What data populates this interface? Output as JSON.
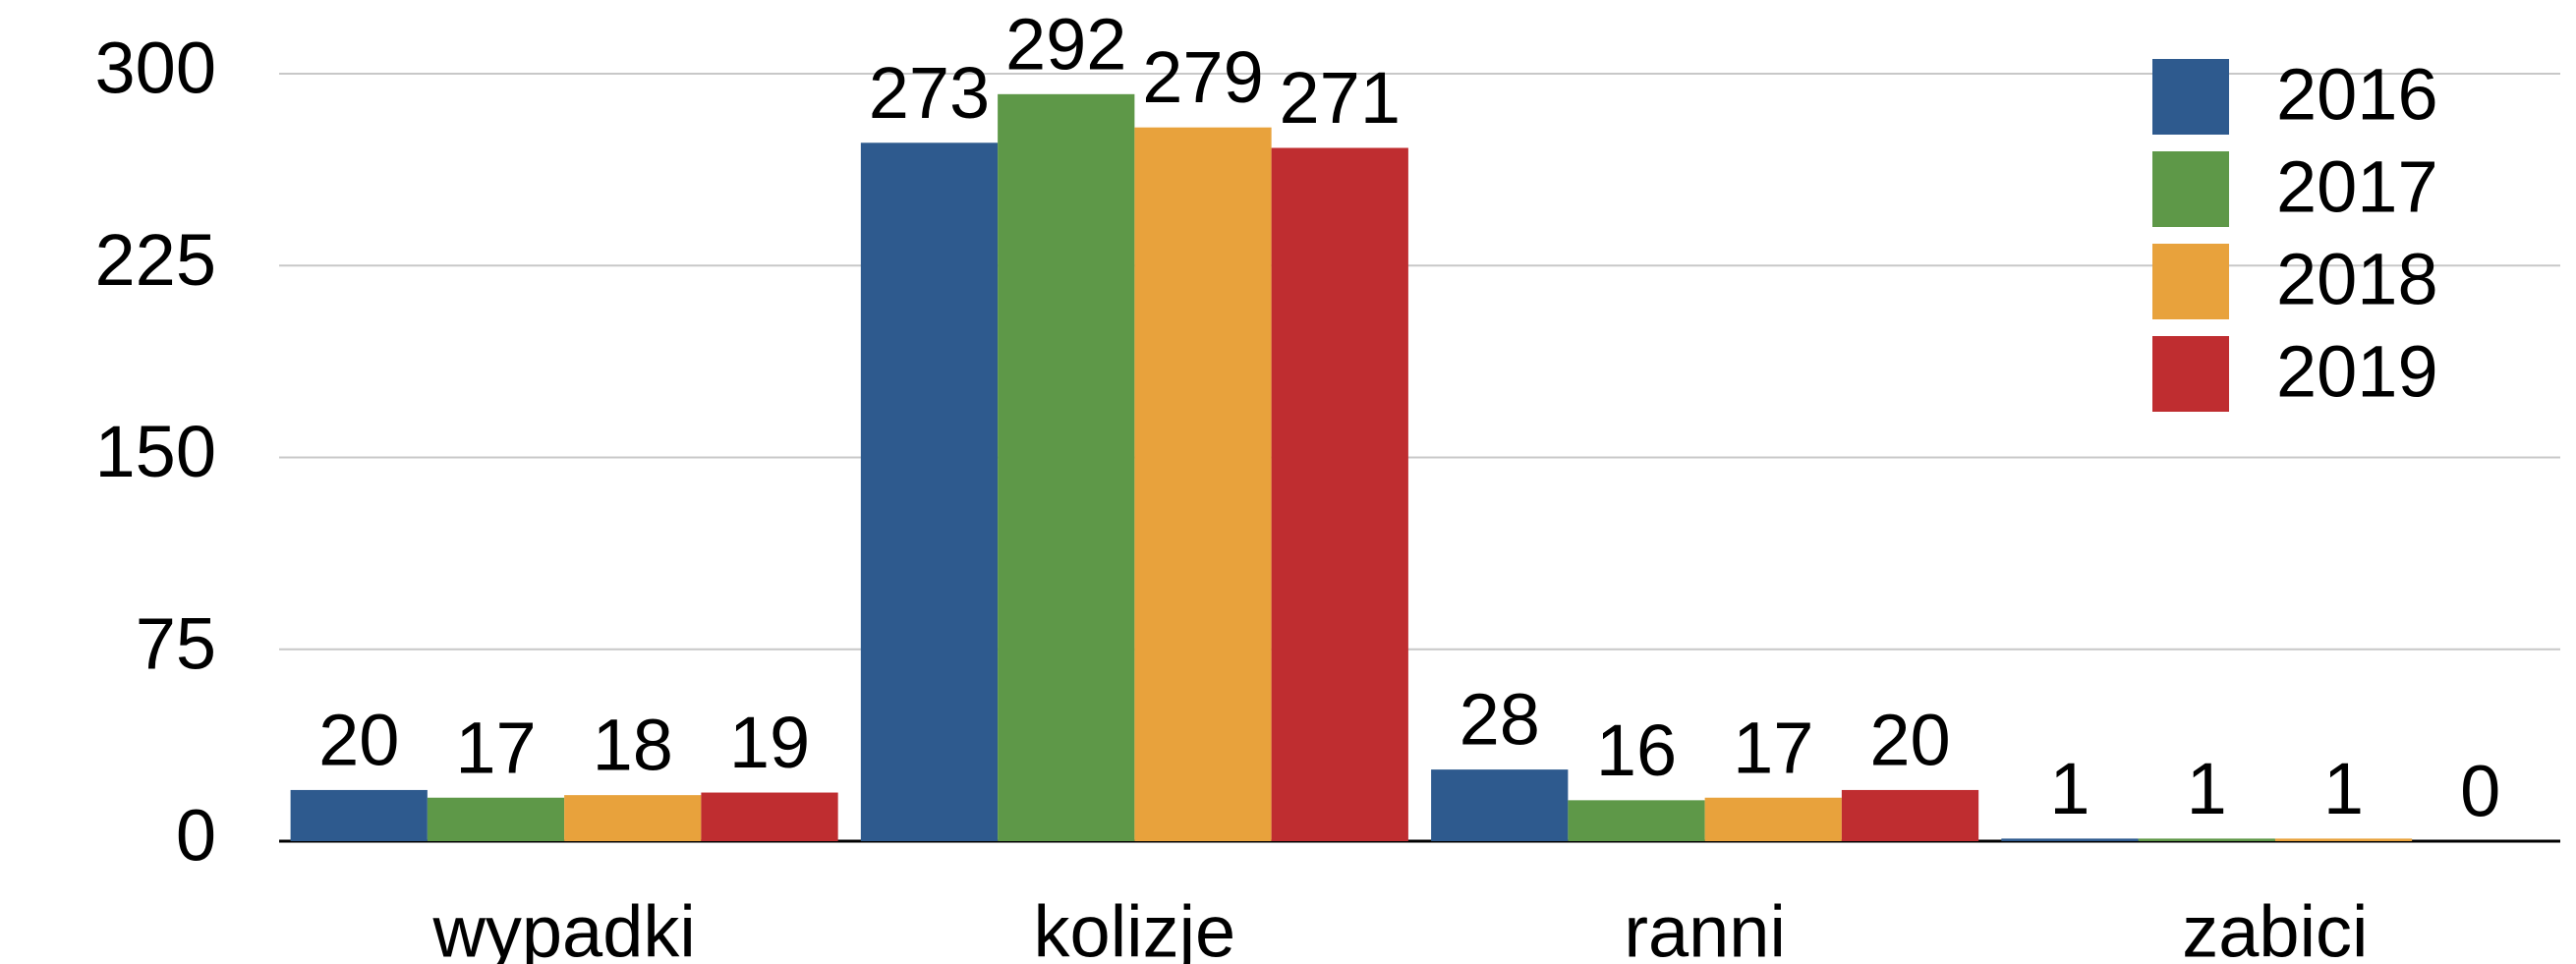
{
  "chart_data": {
    "type": "bar",
    "categories": [
      "wypadki",
      "kolizje",
      "ranni",
      "zabici"
    ],
    "series": [
      {
        "name": "2016",
        "color": "#2e5a8e",
        "values": [
          20,
          273,
          28,
          1
        ]
      },
      {
        "name": "2017",
        "color": "#5e9848",
        "values": [
          17,
          292,
          16,
          1
        ]
      },
      {
        "name": "2018",
        "color": "#e8a23c",
        "values": [
          18,
          279,
          17,
          1
        ]
      },
      {
        "name": "2019",
        "color": "#bf2d30",
        "values": [
          19,
          271,
          20,
          0
        ]
      }
    ],
    "ylim": [
      0,
      300
    ],
    "yticks": [
      0,
      75,
      150,
      225,
      300
    ],
    "grid": true,
    "legend": "upper right"
  }
}
